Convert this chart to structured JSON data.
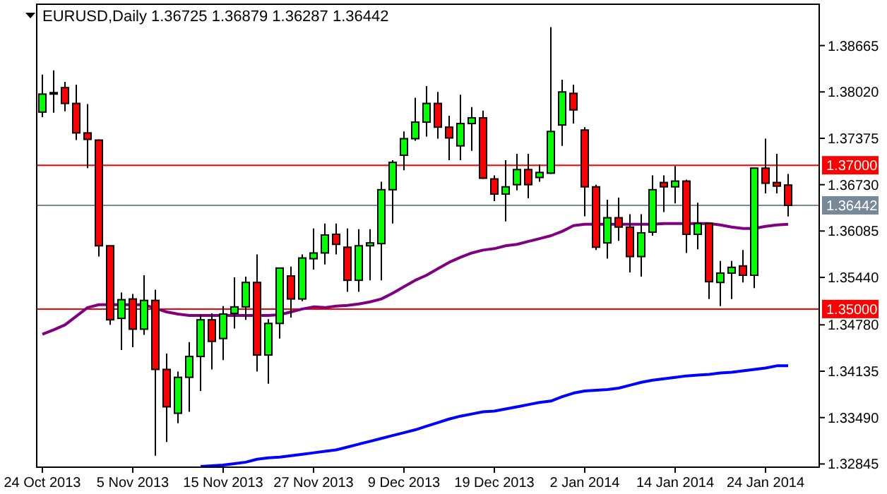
{
  "chart_data": {
    "type": "candlestick",
    "title": "EURUSD,Daily 1.36725 1.36879 1.36287 1.36442",
    "categories": [
      "24 Oct 2013",
      null,
      null,
      null,
      null,
      null,
      null,
      null,
      "5 Nov 2013",
      null,
      null,
      null,
      null,
      null,
      null,
      null,
      "15 Nov 2013",
      null,
      null,
      null,
      null,
      null,
      null,
      null,
      "27 Nov 2013",
      null,
      null,
      null,
      null,
      null,
      null,
      null,
      "9 Dec 2013",
      null,
      null,
      null,
      null,
      null,
      null,
      null,
      "19 Dec 2013",
      null,
      null,
      null,
      null,
      null,
      null,
      null,
      "2 Jan 2014",
      null,
      null,
      null,
      null,
      null,
      null,
      null,
      "14 Jan 2014",
      null,
      null,
      null,
      null,
      null,
      null,
      null,
      "24 Jan 2014",
      null,
      null,
      null,
      null
    ],
    "ohlc": [
      [
        1.3774,
        1.3826,
        1.3767,
        1.3799
      ],
      [
        1.38,
        1.3832,
        1.3773,
        1.3801
      ],
      [
        1.3808,
        1.3816,
        1.3775,
        1.3786
      ],
      [
        1.3786,
        1.3812,
        1.3735,
        1.3745
      ],
      [
        1.3745,
        1.3785,
        1.3696,
        1.3736
      ],
      [
        1.3735,
        1.3736,
        1.3573,
        1.3588
      ],
      [
        1.3588,
        1.3588,
        1.3478,
        1.3485
      ],
      [
        1.3487,
        1.3523,
        1.3443,
        1.3513
      ],
      [
        1.3514,
        1.3521,
        1.3447,
        1.3472
      ],
      [
        1.3472,
        1.3547,
        1.3464,
        1.3512
      ],
      [
        1.3512,
        1.3527,
        1.3296,
        1.3416
      ],
      [
        1.3416,
        1.3438,
        1.3315,
        1.3364
      ],
      [
        1.3355,
        1.3413,
        1.3341,
        1.3405
      ],
      [
        1.3405,
        1.3454,
        1.3357,
        1.3434
      ],
      [
        1.3434,
        1.3492,
        1.3386,
        1.3485
      ],
      [
        1.3485,
        1.3494,
        1.3416,
        1.3455
      ],
      [
        1.3459,
        1.3504,
        1.3429,
        1.3493
      ],
      [
        1.3494,
        1.3544,
        1.3473,
        1.3503
      ],
      [
        1.3503,
        1.3545,
        1.3485,
        1.3537
      ],
      [
        1.3537,
        1.3576,
        1.3413,
        1.3436
      ],
      [
        1.3436,
        1.3486,
        1.3396,
        1.348
      ],
      [
        1.348,
        1.3557,
        1.3459,
        1.3557
      ],
      [
        1.3546,
        1.3559,
        1.3488,
        1.3514
      ],
      [
        1.3514,
        1.3576,
        1.3511,
        1.3571
      ],
      [
        1.357,
        1.3612,
        1.3555,
        1.3578
      ],
      [
        1.3578,
        1.3619,
        1.3562,
        1.3603
      ],
      [
        1.3604,
        1.3619,
        1.3576,
        1.359
      ],
      [
        1.3586,
        1.3612,
        1.3524,
        1.354
      ],
      [
        1.354,
        1.3611,
        1.3524,
        1.3588
      ],
      [
        1.3588,
        1.3611,
        1.354,
        1.3592
      ],
      [
        1.3591,
        1.3677,
        1.354,
        1.3666
      ],
      [
        1.3666,
        1.3707,
        1.3619,
        1.3704
      ],
      [
        1.3714,
        1.3747,
        1.3693,
        1.3737
      ],
      [
        1.3737,
        1.3794,
        1.3734,
        1.376
      ],
      [
        1.376,
        1.381,
        1.374,
        1.3786
      ],
      [
        1.3786,
        1.3802,
        1.3737,
        1.3753
      ],
      [
        1.3753,
        1.3769,
        1.3707,
        1.3738
      ],
      [
        1.3727,
        1.3798,
        1.3707,
        1.3758
      ],
      [
        1.3758,
        1.3781,
        1.372,
        1.3766
      ],
      [
        1.3766,
        1.3776,
        1.3681,
        1.3682
      ],
      [
        1.3681,
        1.3686,
        1.365,
        1.366
      ],
      [
        1.366,
        1.3707,
        1.3622,
        1.367
      ],
      [
        1.3673,
        1.3716,
        1.3665,
        1.3694
      ],
      [
        1.3694,
        1.3716,
        1.3654,
        1.3673
      ],
      [
        1.3683,
        1.3701,
        1.3677,
        1.369
      ],
      [
        1.3689,
        1.3892,
        1.3688,
        1.3747
      ],
      [
        1.3756,
        1.3819,
        1.3727,
        1.3802
      ],
      [
        1.38,
        1.3812,
        1.3758,
        1.3777
      ],
      [
        1.3749,
        1.3753,
        1.3629,
        1.367
      ],
      [
        1.367,
        1.3673,
        1.3582,
        1.3586
      ],
      [
        1.3592,
        1.3652,
        1.357,
        1.3627
      ],
      [
        1.3627,
        1.3655,
        1.3595,
        1.3614
      ],
      [
        1.3614,
        1.3632,
        1.3551,
        1.3573
      ],
      [
        1.3573,
        1.3632,
        1.3545,
        1.3606
      ],
      [
        1.3607,
        1.3686,
        1.3602,
        1.3666
      ],
      [
        1.3676,
        1.3686,
        1.3635,
        1.367
      ],
      [
        1.367,
        1.3699,
        1.3647,
        1.3678
      ],
      [
        1.3678,
        1.368,
        1.3578,
        1.3604
      ],
      [
        1.3604,
        1.3648,
        1.3583,
        1.3619
      ],
      [
        1.3619,
        1.3619,
        1.3514,
        1.3538
      ],
      [
        1.3537,
        1.3567,
        1.3504,
        1.355
      ],
      [
        1.355,
        1.3567,
        1.3514,
        1.3558
      ],
      [
        1.356,
        1.3582,
        1.3537,
        1.3547
      ],
      [
        1.3547,
        1.3696,
        1.3529,
        1.3696
      ],
      [
        1.3696,
        1.3737,
        1.3661,
        1.3675
      ],
      [
        1.3676,
        1.3716,
        1.3661,
        1.3671
      ],
      [
        1.36725,
        1.36879,
        1.36287,
        1.36442
      ],
      null,
      null
    ],
    "colors": [
      "#00ff00",
      "#00ff00",
      "#ff0000",
      "#ff0000",
      "#ff0000",
      "#ff0000",
      "#ff0000",
      "#00ff00",
      "#ff0000",
      "#00ff00",
      "#ff0000",
      "#ff0000",
      "#00ff00",
      "#00ff00",
      "#00ff00",
      "#ff0000",
      "#00ff00",
      "#00ff00",
      "#00ff00",
      "#ff0000",
      "#00ff00",
      "#00ff00",
      "#ff0000",
      "#00ff00",
      "#00ff00",
      "#00ff00",
      "#ff0000",
      "#ff0000",
      "#00ff00",
      "#00ff00",
      "#00ff00",
      "#00ff00",
      "#00ff00",
      "#00ff00",
      "#00ff00",
      "#ff0000",
      "#ff0000",
      "#00ff00",
      "#00ff00",
      "#ff0000",
      "#ff0000",
      "#00ff00",
      "#00ff00",
      "#ff0000",
      "#00ff00",
      "#00ff00",
      "#00ff00",
      "#ff0000",
      "#ff0000",
      "#ff0000",
      "#00ff00",
      "#ff0000",
      "#ff0000",
      "#00ff00",
      "#00ff00",
      "#ff0000",
      "#00ff00",
      "#ff0000",
      "#00ff00",
      "#ff0000",
      "#00ff00",
      "#00ff00",
      "#ff0000",
      "#00ff00",
      "#ff0000",
      "#ff0000",
      "#ff0000",
      null,
      null
    ],
    "series": [
      {
        "type": "line",
        "color": "#800080",
        "values": [
          1.3465,
          1.3471,
          1.3478,
          1.349,
          1.3502,
          1.3506,
          1.3506,
          1.3506,
          1.3506,
          1.3506,
          1.3501,
          1.3496,
          1.3493,
          1.3491,
          1.3491,
          1.3491,
          1.3491,
          1.3491,
          1.3491,
          1.3491,
          1.3491,
          1.3492,
          1.3496,
          1.35,
          1.3503,
          1.3502,
          1.3504,
          1.3505,
          1.3507,
          1.351,
          1.3514,
          1.3522,
          1.3531,
          1.354,
          1.3547,
          1.3556,
          1.3565,
          1.3572,
          1.3578,
          1.3582,
          1.3584,
          1.3588,
          1.359,
          1.3594,
          1.3598,
          1.3602,
          1.3608,
          1.3616,
          1.3618,
          1.3618,
          1.3618,
          1.3618,
          1.3618,
          1.3618,
          1.3618,
          1.3619,
          1.3619,
          1.3619,
          1.3619,
          1.3619,
          1.3617,
          1.3614,
          1.3612,
          1.3612,
          1.3615,
          1.3617,
          1.3618,
          null,
          null
        ]
      },
      {
        "type": "line",
        "color": "#0000ff",
        "values": [
          null,
          null,
          null,
          null,
          null,
          null,
          null,
          null,
          null,
          null,
          null,
          null,
          null,
          null,
          1.3281,
          1.3282,
          1.3283,
          1.3285,
          1.3287,
          1.3291,
          1.3293,
          1.3294,
          1.3296,
          1.3298,
          1.33,
          1.3302,
          1.3304,
          1.3308,
          1.3312,
          1.3316,
          1.332,
          1.3324,
          1.3328,
          1.3332,
          1.3337,
          1.3342,
          1.3347,
          1.3351,
          1.3354,
          1.3357,
          1.3358,
          1.3361,
          1.3364,
          1.3367,
          1.337,
          1.3372,
          1.3378,
          1.3383,
          1.3386,
          1.3387,
          1.3388,
          1.339,
          1.3394,
          1.3398,
          1.3401,
          1.3403,
          1.3405,
          1.3407,
          1.3408,
          1.3409,
          1.3411,
          1.3412,
          1.3414,
          1.3416,
          1.3418,
          1.3421,
          1.3421,
          null,
          null
        ]
      }
    ],
    "ylim": [
      1.328,
      1.3924
    ],
    "yticks": [
      1.38665,
      {
        "value": 1.3802,
        "label": "1.38020"
      },
      1.37375,
      {
        "value": 1.3673,
        "label": "1.36730"
      },
      1.36085,
      {
        "value": 1.3544,
        "label": "1.35440"
      },
      {
        "value": 1.3478,
        "label": "1.34780"
      },
      1.34135,
      {
        "value": 1.3349,
        "label": "1.33490"
      },
      1.32845
    ],
    "ref_lines": [
      {
        "axis": "y",
        "value": 1.37,
        "label": "1.37000",
        "color": "#ff0000"
      },
      {
        "axis": "y",
        "value": 1.35,
        "label": "1.35000",
        "color": "#ff0000"
      },
      {
        "axis": "y",
        "value": 1.36442,
        "label": "1.36442",
        "color": "#778899"
      }
    ]
  }
}
